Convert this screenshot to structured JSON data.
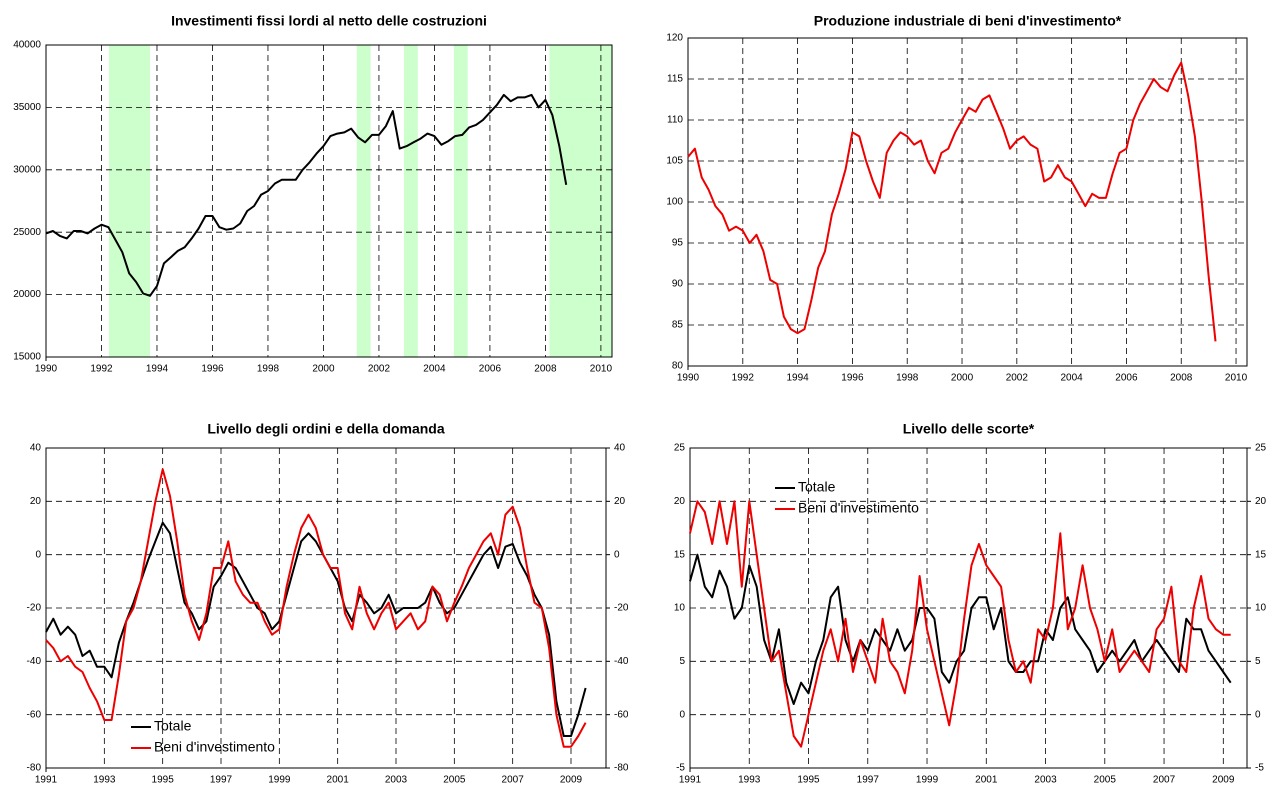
{
  "chart_data": [
    {
      "type": "line",
      "title": "Investimenti fissi lordi al netto delle costruzioni",
      "x": [
        1990,
        1990.25,
        1990.5,
        1990.75,
        1991,
        1991.25,
        1991.5,
        1991.75,
        1992,
        1992.25,
        1992.5,
        1992.75,
        1993,
        1993.25,
        1993.5,
        1993.75,
        1994,
        1994.25,
        1994.5,
        1994.75,
        1995,
        1995.25,
        1995.5,
        1995.75,
        1996,
        1996.25,
        1996.5,
        1996.75,
        1997,
        1997.25,
        1997.5,
        1997.75,
        1998,
        1998.25,
        1998.5,
        1998.75,
        1999,
        1999.25,
        1999.5,
        1999.75,
        2000,
        2000.25,
        2000.5,
        2000.75,
        2001,
        2001.25,
        2001.5,
        2001.75,
        2002,
        2002.25,
        2002.5,
        2002.75,
        2003,
        2003.25,
        2003.5,
        2003.75,
        2004,
        2004.25,
        2004.5,
        2004.75,
        2005,
        2005.25,
        2005.5,
        2005.75,
        2006,
        2006.25,
        2006.5,
        2006.75,
        2007,
        2007.25,
        2007.5,
        2007.75,
        2008,
        2008.25,
        2008.5,
        2008.75
      ],
      "series": [
        {
          "color": "#000000",
          "values": [
            24900,
            25100,
            24700,
            24500,
            25100,
            25100,
            24900,
            25300,
            25600,
            25400,
            24400,
            23400,
            21700,
            21000,
            20100,
            19900,
            20700,
            22500,
            23000,
            23500,
            23800,
            24500,
            25300,
            26300,
            26300,
            25400,
            25200,
            25300,
            25700,
            26700,
            27100,
            28000,
            28300,
            28900,
            29200,
            29200,
            29200,
            30000,
            30600,
            31300,
            31900,
            32700,
            32900,
            33000,
            33300,
            32600,
            32200,
            32800,
            32800,
            33500,
            34700,
            31700,
            31900,
            32200,
            32500,
            32900,
            32700,
            32000,
            32300,
            32700,
            32800,
            33400,
            33600,
            34000,
            34600,
            35200,
            36000,
            35500,
            35800,
            35800,
            36000,
            35000,
            35600,
            34400,
            31900,
            28800
          ]
        }
      ],
      "shaded_periods": [
        [
          1992.27,
          1993.75
        ],
        [
          2001.2,
          2001.7
        ],
        [
          2002.9,
          2003.4
        ],
        [
          2004.7,
          2005.2
        ],
        [
          2008.15,
          2010.4
        ]
      ],
      "shade_color": "#ccffcc",
      "xlim": [
        1990,
        2010.4
      ],
      "xticks": [
        1990,
        1992,
        1994,
        1996,
        1998,
        2000,
        2002,
        2004,
        2006,
        2008,
        2010
      ],
      "ylim": [
        15000,
        40000
      ],
      "yticks": [
        15000,
        20000,
        25000,
        30000,
        35000,
        40000
      ],
      "grid": true
    },
    {
      "type": "line",
      "title": "Produzione industriale di beni d'investimento*",
      "x": [
        1990,
        1990.25,
        1990.5,
        1990.75,
        1991,
        1991.25,
        1991.5,
        1991.75,
        1992,
        1992.25,
        1992.5,
        1992.75,
        1993,
        1993.25,
        1993.5,
        1993.75,
        1994,
        1994.25,
        1994.5,
        1994.75,
        1995,
        1995.25,
        1995.5,
        1995.75,
        1996,
        1996.25,
        1996.5,
        1996.75,
        1997,
        1997.25,
        1997.5,
        1997.75,
        1998,
        1998.25,
        1998.5,
        1998.75,
        1999,
        1999.25,
        1999.5,
        1999.75,
        2000,
        2000.25,
        2000.5,
        2000.75,
        2001,
        2001.25,
        2001.5,
        2001.75,
        2002,
        2002.25,
        2002.5,
        2002.75,
        2003,
        2003.25,
        2003.5,
        2003.75,
        2004,
        2004.25,
        2004.5,
        2004.75,
        2005,
        2005.25,
        2005.5,
        2005.75,
        2006,
        2006.25,
        2006.5,
        2006.75,
        2007,
        2007.25,
        2007.5,
        2007.75,
        2008,
        2008.25,
        2008.5,
        2008.75,
        2009,
        2009.25
      ],
      "series": [
        {
          "color": "#ee0000",
          "values": [
            105.5,
            106.5,
            103,
            101.5,
            99.5,
            98.5,
            96.5,
            97,
            96.5,
            95,
            96,
            94,
            90.5,
            90,
            86,
            84.5,
            84,
            84.5,
            88,
            92,
            94,
            98.5,
            101,
            104,
            108.5,
            108,
            105,
            102.5,
            100.5,
            106,
            107.5,
            108.5,
            108,
            107,
            107.5,
            105,
            103.5,
            106,
            106.5,
            108.5,
            110,
            111.5,
            111,
            112.5,
            113,
            111,
            109,
            106.5,
            107.5,
            108,
            107,
            106.5,
            102.5,
            103,
            104.5,
            103,
            102.5,
            101,
            99.5,
            101,
            100.5,
            100.5,
            103.5,
            106,
            106.5,
            110,
            112,
            113.5,
            115,
            114,
            113.5,
            115.5,
            117,
            113,
            108,
            100,
            91,
            83
          ]
        }
      ],
      "xlim": [
        1990,
        2010.4
      ],
      "xticks": [
        1990,
        1992,
        1994,
        1996,
        1998,
        2000,
        2002,
        2004,
        2006,
        2008,
        2010
      ],
      "ylim": [
        80,
        120
      ],
      "yticks": [
        80,
        85,
        90,
        95,
        100,
        105,
        110,
        115,
        120
      ],
      "grid": true
    },
    {
      "type": "line",
      "title": "Livello degli ordini e della domanda",
      "legend": "lower left",
      "x": [
        1991,
        1991.25,
        1991.5,
        1991.75,
        1992,
        1992.25,
        1992.5,
        1992.75,
        1993,
        1993.25,
        1993.5,
        1993.75,
        1994,
        1994.25,
        1994.5,
        1994.75,
        1995,
        1995.25,
        1995.5,
        1995.75,
        1996,
        1996.25,
        1996.5,
        1996.75,
        1997,
        1997.25,
        1997.5,
        1997.75,
        1998,
        1998.25,
        1998.5,
        1998.75,
        1999,
        1999.25,
        1999.5,
        1999.75,
        2000,
        2000.25,
        2000.5,
        2000.75,
        2001,
        2001.25,
        2001.5,
        2001.75,
        2002,
        2002.25,
        2002.5,
        2002.75,
        2003,
        2003.25,
        2003.5,
        2003.75,
        2004,
        2004.25,
        2004.5,
        2004.75,
        2005,
        2005.25,
        2005.5,
        2005.75,
        2006,
        2006.25,
        2006.5,
        2006.75,
        2007,
        2007.25,
        2007.5,
        2007.75,
        2008,
        2008.25,
        2008.5,
        2008.75,
        2009,
        2009.25,
        2009.5
      ],
      "series": [
        {
          "name": "Totale",
          "color": "#000000",
          "values": [
            -29,
            -24,
            -30,
            -27,
            -30,
            -38,
            -36,
            -42,
            -42,
            -46,
            -33,
            -25,
            -18,
            -10,
            -2,
            5,
            12,
            8,
            -5,
            -18,
            -22,
            -28,
            -25,
            -12,
            -8,
            -3,
            -5,
            -10,
            -15,
            -20,
            -22,
            -28,
            -25,
            -15,
            -5,
            5,
            8,
            5,
            0,
            -5,
            -10,
            -20,
            -25,
            -15,
            -18,
            -22,
            -20,
            -15,
            -22,
            -20,
            -20,
            -20,
            -18,
            -12,
            -18,
            -22,
            -20,
            -15,
            -10,
            -5,
            0,
            3,
            -5,
            3,
            4,
            -3,
            -8,
            -15,
            -20,
            -30,
            -55,
            -68,
            -68,
            -60,
            -50
          ]
        },
        {
          "name": "Beni d'investimento",
          "color": "#ee0000",
          "values": [
            -32,
            -35,
            -40,
            -38,
            -42,
            -44,
            -50,
            -55,
            -62,
            -62,
            -45,
            -25,
            -20,
            -10,
            5,
            20,
            32,
            22,
            5,
            -15,
            -25,
            -32,
            -22,
            -5,
            -5,
            5,
            -10,
            -15,
            -18,
            -18,
            -25,
            -30,
            -28,
            -12,
            0,
            10,
            15,
            10,
            0,
            -5,
            -5,
            -22,
            -28,
            -12,
            -22,
            -28,
            -22,
            -18,
            -28,
            -25,
            -22,
            -28,
            -25,
            -12,
            -15,
            -25,
            -18,
            -12,
            -5,
            0,
            5,
            8,
            0,
            15,
            18,
            10,
            -5,
            -18,
            -20,
            -35,
            -60,
            -72,
            -72,
            -68,
            -63
          ]
        }
      ],
      "xlim": [
        1991,
        2010.2
      ],
      "xticks": [
        1991,
        1993,
        1995,
        1997,
        1999,
        2001,
        2003,
        2005,
        2007,
        2009
      ],
      "ylim": [
        -80,
        40
      ],
      "yticks": [
        -80,
        -60,
        -40,
        -20,
        0,
        20,
        40
      ],
      "y2lim": [
        -80,
        40
      ],
      "y2ticks": [
        -80,
        -60,
        -40,
        -20,
        0,
        20,
        40
      ],
      "grid": true
    },
    {
      "type": "line",
      "title": "Livello delle scorte*",
      "legend": "upper left",
      "x": [
        1991,
        1991.25,
        1991.5,
        1991.75,
        1992,
        1992.25,
        1992.5,
        1992.75,
        1993,
        1993.25,
        1993.5,
        1993.75,
        1994,
        1994.25,
        1994.5,
        1994.75,
        1995,
        1995.25,
        1995.5,
        1995.75,
        1996,
        1996.25,
        1996.5,
        1996.75,
        1997,
        1997.25,
        1997.5,
        1997.75,
        1998,
        1998.25,
        1998.5,
        1998.75,
        1999,
        1999.25,
        1999.5,
        1999.75,
        2000,
        2000.25,
        2000.5,
        2000.75,
        2001,
        2001.25,
        2001.5,
        2001.75,
        2002,
        2002.25,
        2002.5,
        2002.75,
        2003,
        2003.25,
        2003.5,
        2003.75,
        2004,
        2004.25,
        2004.5,
        2004.75,
        2005,
        2005.25,
        2005.5,
        2005.75,
        2006,
        2006.25,
        2006.5,
        2006.75,
        2007,
        2007.25,
        2007.5,
        2007.75,
        2008,
        2008.25,
        2008.5,
        2008.75,
        2009,
        2009.25
      ],
      "series": [
        {
          "name": "Totale",
          "color": "#000000",
          "values": [
            12.5,
            15,
            12,
            11,
            13.5,
            12,
            9,
            10,
            14,
            12,
            7,
            5,
            8,
            3,
            1,
            3,
            2,
            5,
            7,
            11,
            12,
            7,
            5,
            7,
            6,
            8,
            7,
            6,
            8,
            6,
            7,
            10,
            10,
            9,
            4,
            3,
            5,
            6,
            10,
            11,
            11,
            8,
            10,
            5,
            4,
            4,
            5,
            5,
            8,
            7,
            10,
            11,
            8,
            7,
            6,
            4,
            5,
            6,
            5,
            6,
            7,
            5,
            6,
            7,
            6,
            5,
            4,
            9,
            8,
            8,
            6,
            5,
            4,
            3
          ]
        },
        {
          "name": "Beni d'investimento",
          "color": "#ee0000",
          "values": [
            17,
            20,
            19,
            16,
            20,
            16,
            20,
            12,
            20,
            15,
            10,
            5,
            6,
            2,
            -2,
            -3,
            0,
            3,
            6,
            8,
            5,
            9,
            4,
            7,
            5,
            3,
            9,
            5,
            4,
            2,
            6,
            13,
            8,
            5,
            2,
            -1,
            3,
            9,
            14,
            16,
            14,
            13,
            12,
            7,
            4,
            5,
            3,
            8,
            7,
            10,
            17,
            8,
            10,
            14,
            10,
            8,
            5,
            8,
            4,
            5,
            6,
            5,
            4,
            8,
            9,
            12,
            5,
            4,
            10,
            13,
            9,
            8,
            7.5,
            7.5
          ]
        }
      ],
      "xlim": [
        1991,
        2009.8
      ],
      "xticks": [
        1991,
        1993,
        1995,
        1997,
        1999,
        2001,
        2003,
        2005,
        2007,
        2009
      ],
      "ylim": [
        -5,
        25
      ],
      "yticks": [
        -5,
        0,
        5,
        10,
        15,
        20,
        25
      ],
      "y2lim": [
        -5,
        25
      ],
      "y2ticks": [
        -5,
        0,
        5,
        10,
        15,
        20,
        25
      ],
      "grid": true
    }
  ]
}
